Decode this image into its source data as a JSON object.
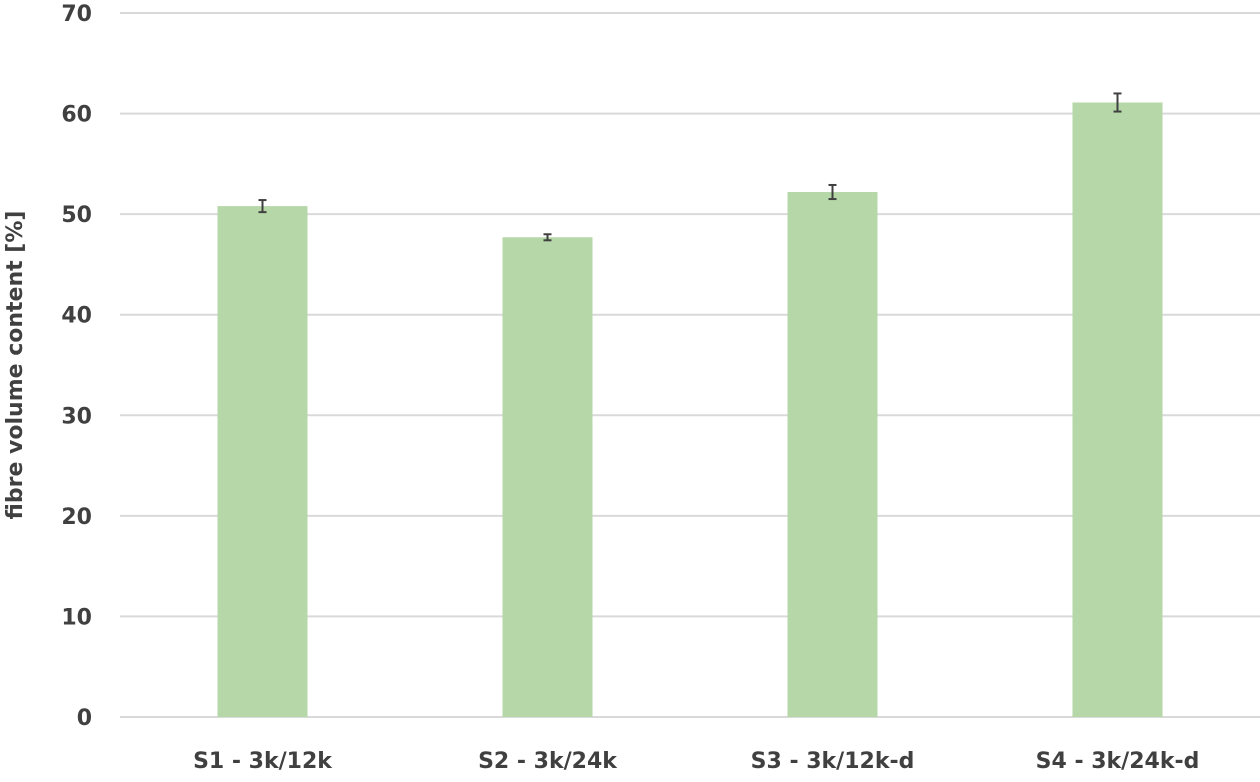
{
  "chart_data": {
    "type": "bar",
    "title": "",
    "xlabel": "",
    "ylabel": "fibre volume content [%]",
    "categories": [
      "S1 -   3k/12k",
      "S2 -   3k/24k",
      "S3 -   3k/12k-d",
      "S4 -   3k/24k-d"
    ],
    "values": [
      50.8,
      47.7,
      52.2,
      61.1
    ],
    "errors": [
      0.6,
      0.3,
      0.7,
      0.9
    ],
    "ylim": [
      0,
      70
    ],
    "yticks": [
      0,
      10,
      20,
      30,
      40,
      50,
      60,
      70
    ],
    "grid": true,
    "legend": "none",
    "bar_color": "#b6d7a8",
    "grid_color": "#d9d9d9",
    "error_color": "#404040"
  }
}
